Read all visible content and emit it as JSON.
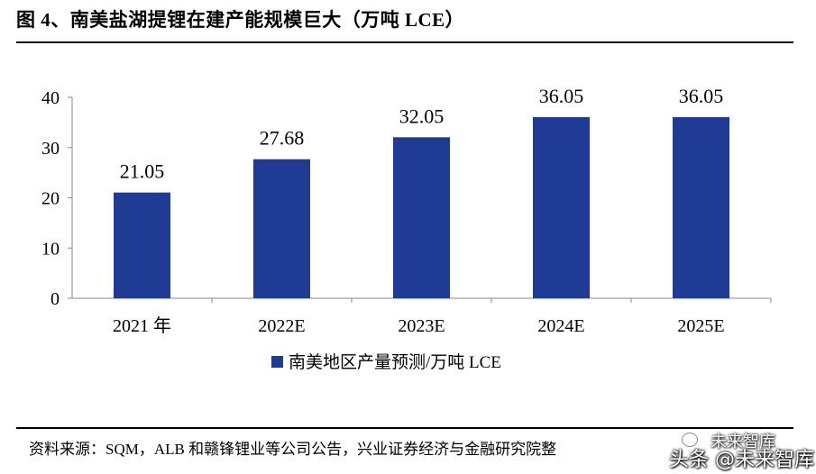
{
  "title": "图 4、南美盐湖提锂在建产能规模巨大（万吨 LCE）",
  "source": "资料来源：SQM，ALB 和赣锋锂业等公司公告，兴业证券经济与金融研究院整",
  "watermark": {
    "name": "未来智库",
    "line": "头条 @未来智库"
  },
  "colors": {
    "bar": "#1f3b94",
    "axis": "#888888"
  },
  "chart_data": {
    "type": "bar",
    "categories": [
      "2021 年",
      "2022E",
      "2023E",
      "2024E",
      "2025E"
    ],
    "series": [
      {
        "name": "南美地区产量预测/万吨 LCE",
        "values": [
          21.05,
          27.68,
          32.05,
          36.05,
          36.05
        ]
      }
    ],
    "data_labels": [
      "21.05",
      "27.68",
      "32.05",
      "36.05",
      "36.05"
    ],
    "yticks": [
      "0",
      "10",
      "20",
      "30",
      "40"
    ],
    "ylim": [
      0,
      40
    ],
    "grid": false,
    "legend_position": "bottom"
  }
}
